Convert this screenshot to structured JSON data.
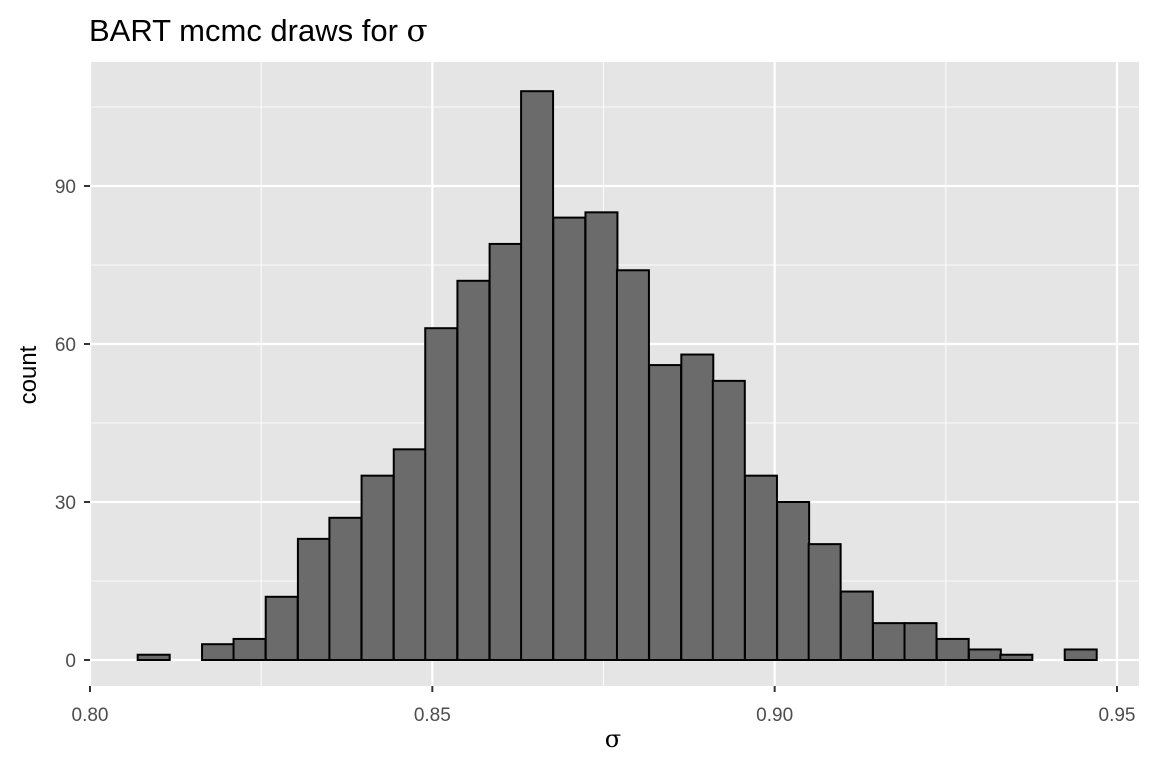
{
  "chart_data": {
    "type": "bar",
    "title_text": "BART mcmc draws for ",
    "title_symbol": "σ",
    "xlabel": "σ",
    "ylabel": "count",
    "xlim": [
      0.8,
      0.95
    ],
    "ylim": [
      0,
      110
    ],
    "x_ticks": [
      0.8,
      0.85,
      0.9,
      0.95
    ],
    "x_tick_labels": [
      "0.80",
      "0.85",
      "0.90",
      "0.95"
    ],
    "y_ticks": [
      0,
      30,
      60,
      90
    ],
    "y_tick_labels": [
      "0",
      "30",
      "60",
      "90"
    ],
    "grid": true,
    "bin_width": 0.00467,
    "bins": [
      {
        "x": 0.8093,
        "count": 1
      },
      {
        "x": 0.814,
        "count": 0
      },
      {
        "x": 0.8187,
        "count": 3
      },
      {
        "x": 0.8233,
        "count": 4
      },
      {
        "x": 0.828,
        "count": 12
      },
      {
        "x": 0.8327,
        "count": 23
      },
      {
        "x": 0.8373,
        "count": 27
      },
      {
        "x": 0.842,
        "count": 35
      },
      {
        "x": 0.8467,
        "count": 40
      },
      {
        "x": 0.8513,
        "count": 63
      },
      {
        "x": 0.856,
        "count": 72
      },
      {
        "x": 0.8607,
        "count": 79
      },
      {
        "x": 0.8653,
        "count": 108
      },
      {
        "x": 0.87,
        "count": 84
      },
      {
        "x": 0.8747,
        "count": 85
      },
      {
        "x": 0.8793,
        "count": 74
      },
      {
        "x": 0.884,
        "count": 56
      },
      {
        "x": 0.8887,
        "count": 58
      },
      {
        "x": 0.8933,
        "count": 53
      },
      {
        "x": 0.898,
        "count": 35
      },
      {
        "x": 0.9027,
        "count": 30
      },
      {
        "x": 0.9073,
        "count": 22
      },
      {
        "x": 0.912,
        "count": 13
      },
      {
        "x": 0.9167,
        "count": 7
      },
      {
        "x": 0.9213,
        "count": 7
      },
      {
        "x": 0.926,
        "count": 4
      },
      {
        "x": 0.9307,
        "count": 2
      },
      {
        "x": 0.9353,
        "count": 1
      },
      {
        "x": 0.94,
        "count": 0
      },
      {
        "x": 0.9447,
        "count": 2
      }
    ],
    "colors": {
      "panel": "#e5e5e5",
      "grid_major": "#ffffff",
      "bar_fill": "#6b6b6b",
      "bar_stroke": "#000000",
      "tick": "#333333"
    }
  }
}
